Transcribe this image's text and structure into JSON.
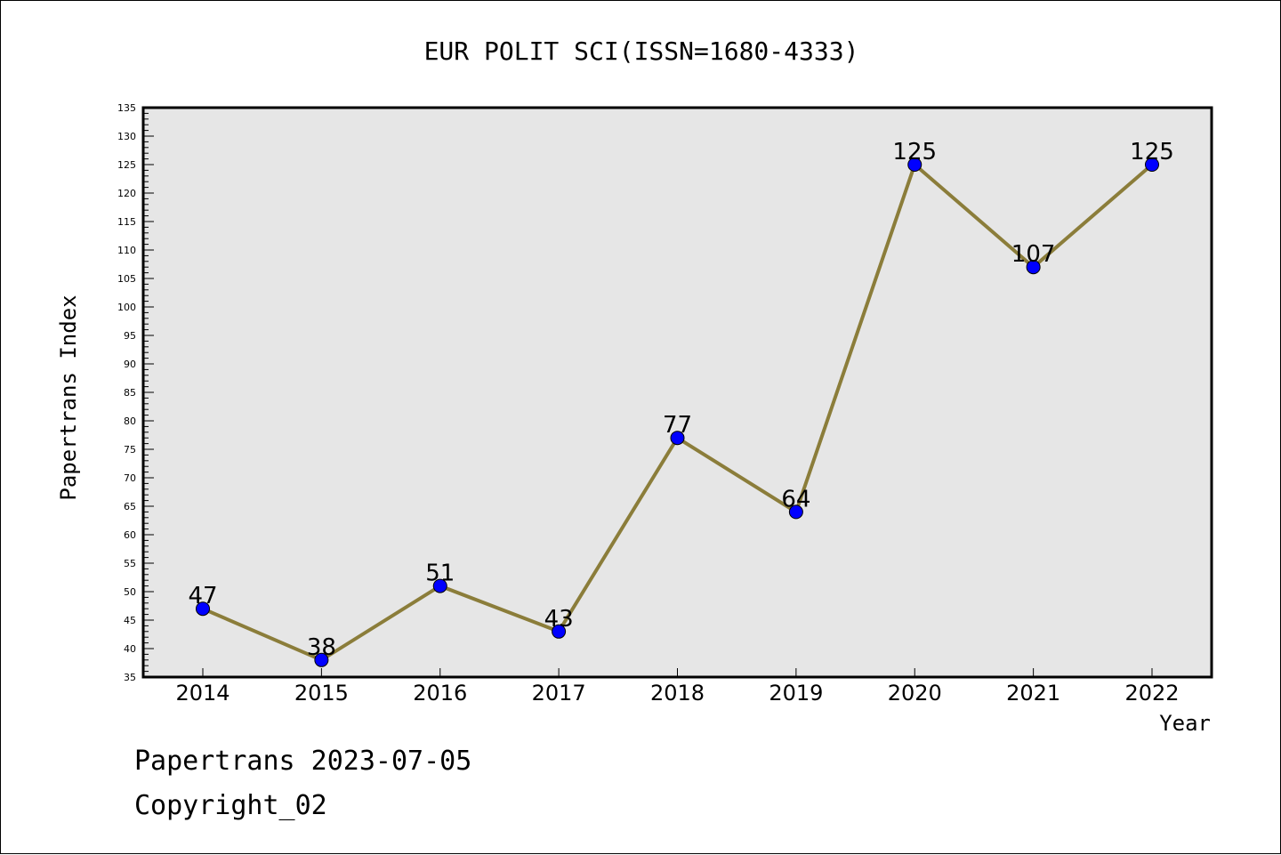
{
  "chart_data": {
    "type": "line",
    "title": "EUR POLIT SCI(ISSN=1680-4333)",
    "xlabel": "Year",
    "ylabel": "Papertrans Index",
    "categories": [
      "2014",
      "2015",
      "2016",
      "2017",
      "2018",
      "2019",
      "2020",
      "2021",
      "2022"
    ],
    "series": [
      {
        "values": [
          47,
          38,
          51,
          43,
          77,
          64,
          125,
          107,
          125
        ]
      }
    ],
    "ylim": [
      35,
      135
    ],
    "ytick_step": 5,
    "yminor_step": 1,
    "grid": false,
    "data_labels": true,
    "colors": {
      "line": "#8b7d3a",
      "marker": "#0000ff",
      "plot_background": "#e6e6e6"
    }
  },
  "footer": {
    "line1": "Papertrans 2023-07-05",
    "line2": "Copyright_02"
  }
}
